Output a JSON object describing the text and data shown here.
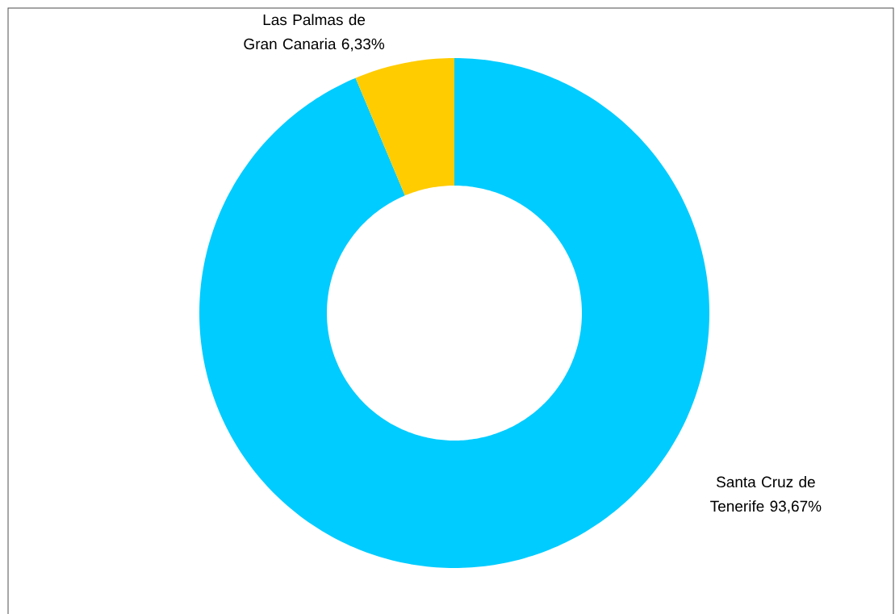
{
  "chart_data": {
    "type": "donut",
    "categories": [
      "Santa Cruz de Tenerife",
      "Las Palmas de Gran Canaria"
    ],
    "values": [
      93.67,
      6.33
    ],
    "colors": [
      "#00ccff",
      "#ffcc00"
    ],
    "value_labels": [
      "93,67%",
      "6,33%"
    ]
  }
}
